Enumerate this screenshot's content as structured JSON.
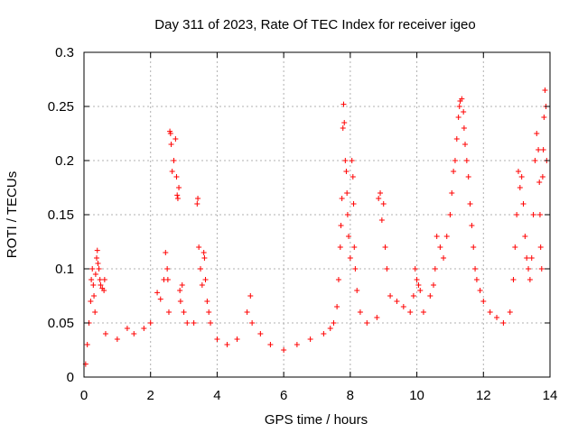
{
  "chart_data": {
    "type": "scatter",
    "title": "Day 311 of 2023, Rate Of TEC Index for receiver igeo",
    "xlabel": "GPS time / hours",
    "ylabel": "ROTI / TECUs",
    "xlim": [
      0,
      14
    ],
    "ylim": [
      0,
      0.3
    ],
    "xticks": [
      0,
      2,
      4,
      6,
      8,
      10,
      12,
      14
    ],
    "yticks": [
      0,
      0.05,
      0.1,
      0.15,
      0.2,
      0.25,
      0.3
    ],
    "ytick_labels": [
      "0",
      "0.05",
      "0.1",
      "0.15",
      "0.2",
      "0.25",
      "0.3"
    ],
    "grid": true,
    "marker": "+",
    "color": "#ff0000",
    "series": [
      {
        "name": "ROTI",
        "points": [
          [
            0.05,
            0.012
          ],
          [
            0.1,
            0.03
          ],
          [
            0.15,
            0.05
          ],
          [
            0.2,
            0.07
          ],
          [
            0.22,
            0.09
          ],
          [
            0.25,
            0.1
          ],
          [
            0.28,
            0.085
          ],
          [
            0.3,
            0.075
          ],
          [
            0.33,
            0.06
          ],
          [
            0.35,
            0.095
          ],
          [
            0.38,
            0.11
          ],
          [
            0.4,
            0.117
          ],
          [
            0.42,
            0.105
          ],
          [
            0.45,
            0.1
          ],
          [
            0.48,
            0.09
          ],
          [
            0.5,
            0.085
          ],
          [
            0.55,
            0.082
          ],
          [
            0.6,
            0.08
          ],
          [
            0.62,
            0.09
          ],
          [
            0.65,
            0.04
          ],
          [
            1.0,
            0.035
          ],
          [
            1.3,
            0.045
          ],
          [
            1.5,
            0.04
          ],
          [
            1.8,
            0.045
          ],
          [
            2.0,
            0.05
          ],
          [
            2.2,
            0.078
          ],
          [
            2.3,
            0.072
          ],
          [
            2.4,
            0.09
          ],
          [
            2.45,
            0.115
          ],
          [
            2.5,
            0.1
          ],
          [
            2.52,
            0.09
          ],
          [
            2.55,
            0.06
          ],
          [
            2.58,
            0.227
          ],
          [
            2.6,
            0.225
          ],
          [
            2.62,
            0.215
          ],
          [
            2.65,
            0.19
          ],
          [
            2.7,
            0.2
          ],
          [
            2.75,
            0.22
          ],
          [
            2.78,
            0.185
          ],
          [
            2.8,
            0.168
          ],
          [
            2.82,
            0.165
          ],
          [
            2.85,
            0.175
          ],
          [
            2.88,
            0.08
          ],
          [
            2.9,
            0.07
          ],
          [
            2.95,
            0.085
          ],
          [
            3.0,
            0.06
          ],
          [
            3.1,
            0.05
          ],
          [
            3.3,
            0.05
          ],
          [
            3.4,
            0.16
          ],
          [
            3.42,
            0.165
          ],
          [
            3.45,
            0.12
          ],
          [
            3.5,
            0.1
          ],
          [
            3.55,
            0.085
          ],
          [
            3.6,
            0.115
          ],
          [
            3.62,
            0.11
          ],
          [
            3.65,
            0.09
          ],
          [
            3.7,
            0.07
          ],
          [
            3.75,
            0.06
          ],
          [
            3.8,
            0.05
          ],
          [
            4.0,
            0.035
          ],
          [
            4.3,
            0.03
          ],
          [
            4.6,
            0.035
          ],
          [
            4.9,
            0.06
          ],
          [
            5.0,
            0.075
          ],
          [
            5.05,
            0.05
          ],
          [
            5.3,
            0.04
          ],
          [
            5.6,
            0.03
          ],
          [
            6.0,
            0.025
          ],
          [
            6.4,
            0.03
          ],
          [
            6.8,
            0.035
          ],
          [
            7.2,
            0.04
          ],
          [
            7.4,
            0.045
          ],
          [
            7.5,
            0.05
          ],
          [
            7.6,
            0.065
          ],
          [
            7.65,
            0.09
          ],
          [
            7.7,
            0.12
          ],
          [
            7.72,
            0.14
          ],
          [
            7.75,
            0.165
          ],
          [
            7.78,
            0.23
          ],
          [
            7.8,
            0.252
          ],
          [
            7.82,
            0.235
          ],
          [
            7.85,
            0.2
          ],
          [
            7.88,
            0.19
          ],
          [
            7.9,
            0.17
          ],
          [
            7.92,
            0.15
          ],
          [
            7.95,
            0.13
          ],
          [
            8.0,
            0.11
          ],
          [
            8.05,
            0.2
          ],
          [
            8.08,
            0.185
          ],
          [
            8.1,
            0.16
          ],
          [
            8.12,
            0.12
          ],
          [
            8.15,
            0.1
          ],
          [
            8.2,
            0.08
          ],
          [
            8.3,
            0.06
          ],
          [
            8.5,
            0.05
          ],
          [
            8.8,
            0.055
          ],
          [
            8.85,
            0.165
          ],
          [
            8.9,
            0.17
          ],
          [
            8.95,
            0.145
          ],
          [
            9.0,
            0.16
          ],
          [
            9.05,
            0.12
          ],
          [
            9.1,
            0.1
          ],
          [
            9.2,
            0.075
          ],
          [
            9.4,
            0.07
          ],
          [
            9.6,
            0.065
          ],
          [
            9.8,
            0.06
          ],
          [
            9.9,
            0.075
          ],
          [
            9.95,
            0.1
          ],
          [
            10.0,
            0.09
          ],
          [
            10.05,
            0.085
          ],
          [
            10.1,
            0.08
          ],
          [
            10.2,
            0.06
          ],
          [
            10.4,
            0.075
          ],
          [
            10.5,
            0.085
          ],
          [
            10.55,
            0.1
          ],
          [
            10.6,
            0.13
          ],
          [
            10.7,
            0.12
          ],
          [
            10.8,
            0.11
          ],
          [
            10.9,
            0.13
          ],
          [
            11.0,
            0.15
          ],
          [
            11.05,
            0.17
          ],
          [
            11.1,
            0.19
          ],
          [
            11.15,
            0.2
          ],
          [
            11.2,
            0.22
          ],
          [
            11.25,
            0.24
          ],
          [
            11.28,
            0.25
          ],
          [
            11.3,
            0.255
          ],
          [
            11.35,
            0.257
          ],
          [
            11.4,
            0.245
          ],
          [
            11.42,
            0.23
          ],
          [
            11.45,
            0.215
          ],
          [
            11.5,
            0.2
          ],
          [
            11.55,
            0.185
          ],
          [
            11.6,
            0.16
          ],
          [
            11.65,
            0.14
          ],
          [
            11.7,
            0.12
          ],
          [
            11.75,
            0.1
          ],
          [
            11.8,
            0.09
          ],
          [
            11.9,
            0.08
          ],
          [
            12.0,
            0.07
          ],
          [
            12.2,
            0.06
          ],
          [
            12.4,
            0.055
          ],
          [
            12.6,
            0.05
          ],
          [
            12.8,
            0.06
          ],
          [
            12.9,
            0.09
          ],
          [
            12.95,
            0.12
          ],
          [
            13.0,
            0.15
          ],
          [
            13.05,
            0.19
          ],
          [
            13.1,
            0.175
          ],
          [
            13.15,
            0.185
          ],
          [
            13.2,
            0.16
          ],
          [
            13.25,
            0.13
          ],
          [
            13.3,
            0.11
          ],
          [
            13.35,
            0.1
          ],
          [
            13.4,
            0.09
          ],
          [
            13.45,
            0.11
          ],
          [
            13.5,
            0.15
          ],
          [
            13.55,
            0.2
          ],
          [
            13.6,
            0.225
          ],
          [
            13.65,
            0.21
          ],
          [
            13.68,
            0.18
          ],
          [
            13.7,
            0.15
          ],
          [
            13.72,
            0.12
          ],
          [
            13.75,
            0.1
          ],
          [
            13.78,
            0.185
          ],
          [
            13.8,
            0.21
          ],
          [
            13.82,
            0.24
          ],
          [
            13.85,
            0.265
          ],
          [
            13.88,
            0.25
          ],
          [
            13.9,
            0.2
          ]
        ]
      }
    ]
  }
}
